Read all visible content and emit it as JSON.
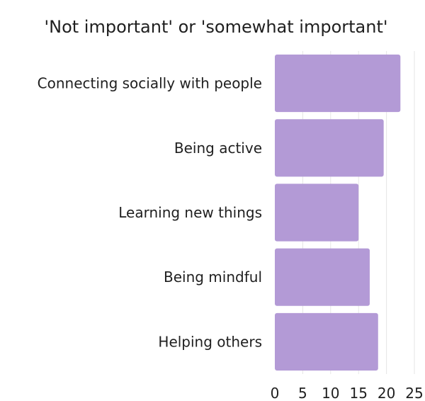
{
  "chart_data": {
    "type": "bar",
    "orientation": "horizontal",
    "title": "'Not important' or 'somewhat important'",
    "categories": [
      "Connecting socially with people",
      "Being active",
      "Learning new things",
      "Being mindful",
      "Helping others"
    ],
    "values": [
      22.5,
      19.5,
      15,
      17,
      18.5
    ],
    "xlabel": "",
    "ylabel": "",
    "xlim": [
      0,
      25
    ],
    "xticks": [
      0,
      5,
      10,
      15,
      20,
      25
    ],
    "grid": true,
    "legend": "none",
    "bar_color": "#b39ad6",
    "text_color": "#1f1f1f",
    "grid_color": "#e6e6e6"
  }
}
